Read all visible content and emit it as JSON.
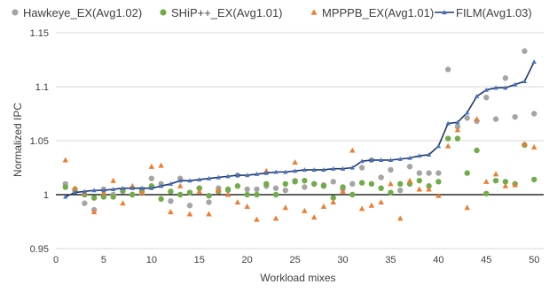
{
  "chart_data": {
    "type": "scatter",
    "xlabel": "Workload mixes",
    "ylabel": "Normalized IPC",
    "xlim": [
      0,
      51
    ],
    "ylim": [
      0.95,
      1.15
    ],
    "x_ticks": [
      0,
      5,
      10,
      15,
      20,
      25,
      30,
      35,
      40,
      45,
      50
    ],
    "y_ticks": [
      0.95,
      1,
      1.05,
      1.1,
      1.15
    ],
    "y_tick_labels": [
      "0.95",
      "1",
      "1.05",
      "1.1",
      "1.15"
    ],
    "grid": "horizontal",
    "legend_position": "top",
    "x": [
      1,
      2,
      3,
      4,
      5,
      6,
      7,
      8,
      9,
      10,
      11,
      12,
      13,
      14,
      15,
      16,
      17,
      18,
      19,
      20,
      21,
      22,
      23,
      24,
      25,
      26,
      27,
      28,
      29,
      30,
      31,
      32,
      33,
      34,
      35,
      36,
      37,
      38,
      39,
      40,
      41,
      42,
      43,
      44,
      45,
      46,
      47,
      48,
      49,
      50
    ],
    "series": [
      {
        "name": "Hawkeye_EX(Avg1.02)",
        "marker": "circle",
        "color": "#a5a5a5",
        "values": [
          1.01,
          1.003,
          0.992,
          0.986,
          1.005,
          1.0,
          1.003,
          1.0,
          1.005,
          1.015,
          1.01,
          0.994,
          1.015,
          0.99,
          1.006,
          0.993,
          1.006,
          1.004,
          1.018,
          1.005,
          1.005,
          1.008,
          1.006,
          1.004,
          1.013,
          1.007,
          1.01,
          1.009,
          1.012,
          1.005,
          1.01,
          1.025,
          1.032,
          1.016,
          1.023,
          1.004,
          1.026,
          1.02,
          1.02,
          1.02,
          1.116,
          1.063,
          1.071,
          1.068,
          1.09,
          1.07,
          1.108,
          1.072,
          1.133,
          1.075
        ]
      },
      {
        "name": "SHiP++_EX(Avg1.01)",
        "marker": "circle",
        "color": "#70ad47",
        "values": [
          1.007,
          1.005,
          1.0,
          0.997,
          0.998,
          0.998,
          1.004,
          1.0,
          1.003,
          1.008,
          0.996,
          1.003,
          1.0,
          1.002,
          1.006,
          0.999,
          1.003,
          1.005,
          1.008,
          1.0,
          1.0,
          1.01,
          1.0,
          1.01,
          1.012,
          1.013,
          1.01,
          1.008,
          0.997,
          1.007,
          1.0,
          1.011,
          1.01,
          1.006,
          1.002,
          1.01,
          1.01,
          1.013,
          1.008,
          1.012,
          1.052,
          1.052,
          1.02,
          1.041,
          1.001,
          1.013,
          1.012,
          1.01,
          1.046,
          1.014
        ]
      },
      {
        "name": "MPPPB_EX(Avg1.01)",
        "marker": "triangle",
        "color": "#ed7d31",
        "values": [
          1.032,
          1.006,
          1.002,
          0.984,
          1.002,
          1.013,
          0.992,
          1.008,
          1.002,
          1.026,
          1.027,
          0.984,
          1.008,
          0.982,
          1.003,
          0.982,
          1.004,
          1.0,
          0.993,
          0.989,
          0.977,
          1.022,
          0.978,
          0.988,
          1.03,
          0.985,
          0.979,
          0.989,
          0.993,
          1.003,
          1.041,
          0.987,
          0.99,
          0.993,
          1.01,
          0.978,
          1.013,
          1.005,
          1.005,
          0.999,
          1.045,
          1.06,
          0.988,
          1.07,
          1.012,
          1.019,
          1.008,
          1.009,
          1.047,
          1.044
        ]
      },
      {
        "name": "FILM(Avg1.03)",
        "marker": "triangle-line",
        "color": "#4472c4",
        "line_color": "#203864",
        "values": [
          0.998,
          1.002,
          1.003,
          1.004,
          1.004,
          1.005,
          1.006,
          1.006,
          1.006,
          1.006,
          1.008,
          1.01,
          1.013,
          1.013,
          1.014,
          1.015,
          1.016,
          1.017,
          1.018,
          1.018,
          1.019,
          1.02,
          1.021,
          1.021,
          1.022,
          1.023,
          1.023,
          1.023,
          1.024,
          1.024,
          1.025,
          1.031,
          1.032,
          1.032,
          1.032,
          1.033,
          1.034,
          1.036,
          1.037,
          1.045,
          1.066,
          1.067,
          1.076,
          1.091,
          1.097,
          1.099,
          1.099,
          1.102,
          1.105,
          1.123
        ]
      }
    ]
  }
}
